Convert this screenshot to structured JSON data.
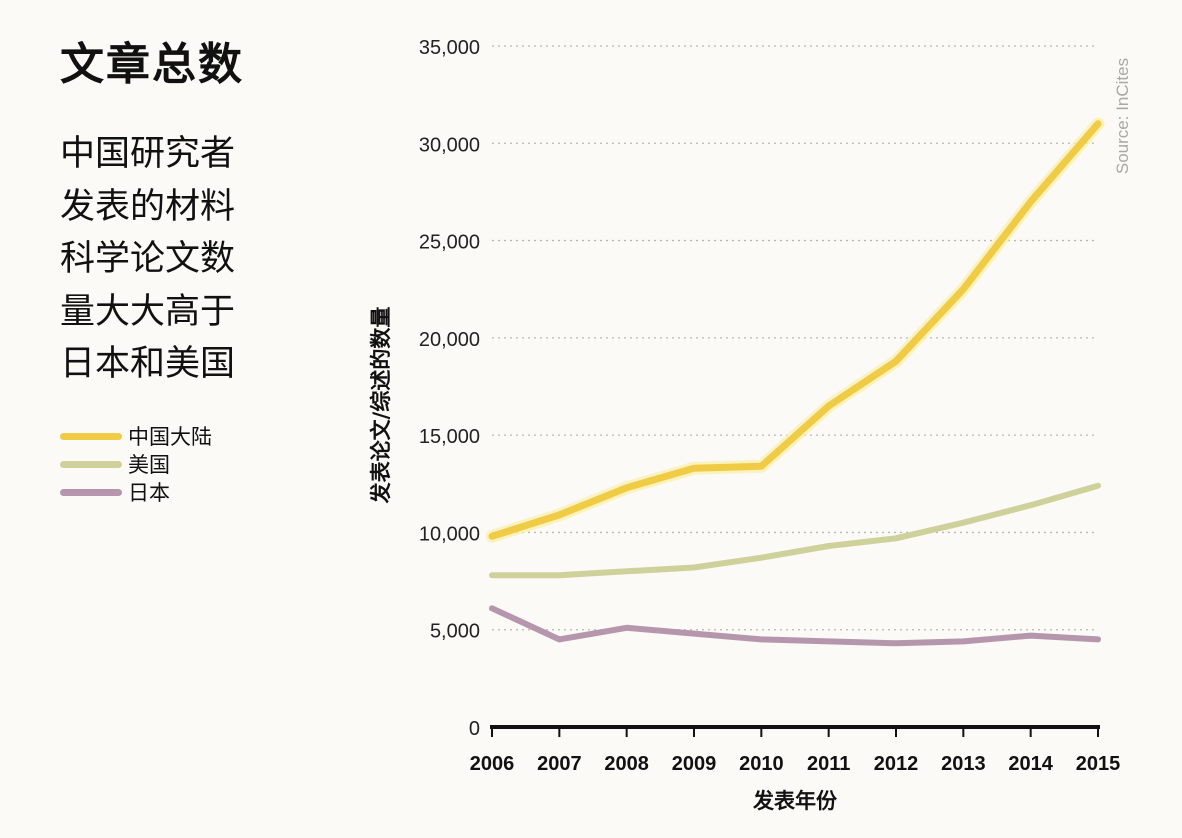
{
  "title": "文章总数",
  "subtitle_lines": [
    "中国研究者",
    "发表的材料",
    "科学论文数",
    "量大大高于",
    "日本和美国"
  ],
  "legend": [
    {
      "label": "中国大陆",
      "color": "#f0cb45"
    },
    {
      "label": "美国",
      "color": "#cfd19b"
    },
    {
      "label": "日本",
      "color": "#b596ad"
    }
  ],
  "chart_data": {
    "type": "line",
    "title": "文章总数",
    "xlabel": "发表年份",
    "ylabel": "发表论文/综述的数量",
    "source": "Source: InCites",
    "x": [
      "2006",
      "2007",
      "2008",
      "2009",
      "2010",
      "2011",
      "2012",
      "2013",
      "2014",
      "2015"
    ],
    "ylim": [
      0,
      35000
    ],
    "yticks": [
      0,
      5000,
      10000,
      15000,
      20000,
      25000,
      30000,
      35000
    ],
    "ytick_labels": [
      "0",
      "5,000",
      "10,000",
      "15,000",
      "20,000",
      "25,000",
      "30,000",
      "35,000"
    ],
    "grid": true,
    "legend_position": "left",
    "series": [
      {
        "name": "中国大陆",
        "color": "#f0cb45",
        "values": [
          9800,
          10900,
          12300,
          13300,
          13400,
          16500,
          18800,
          22500,
          27000,
          31000
        ]
      },
      {
        "name": "美国",
        "color": "#cfd19b",
        "values": [
          7800,
          7800,
          8000,
          8200,
          8700,
          9300,
          9700,
          10500,
          11400,
          12400
        ]
      },
      {
        "name": "日本",
        "color": "#b596ad",
        "values": [
          6100,
          4500,
          5100,
          4800,
          4500,
          4400,
          4300,
          4400,
          4700,
          4500
        ]
      }
    ]
  }
}
